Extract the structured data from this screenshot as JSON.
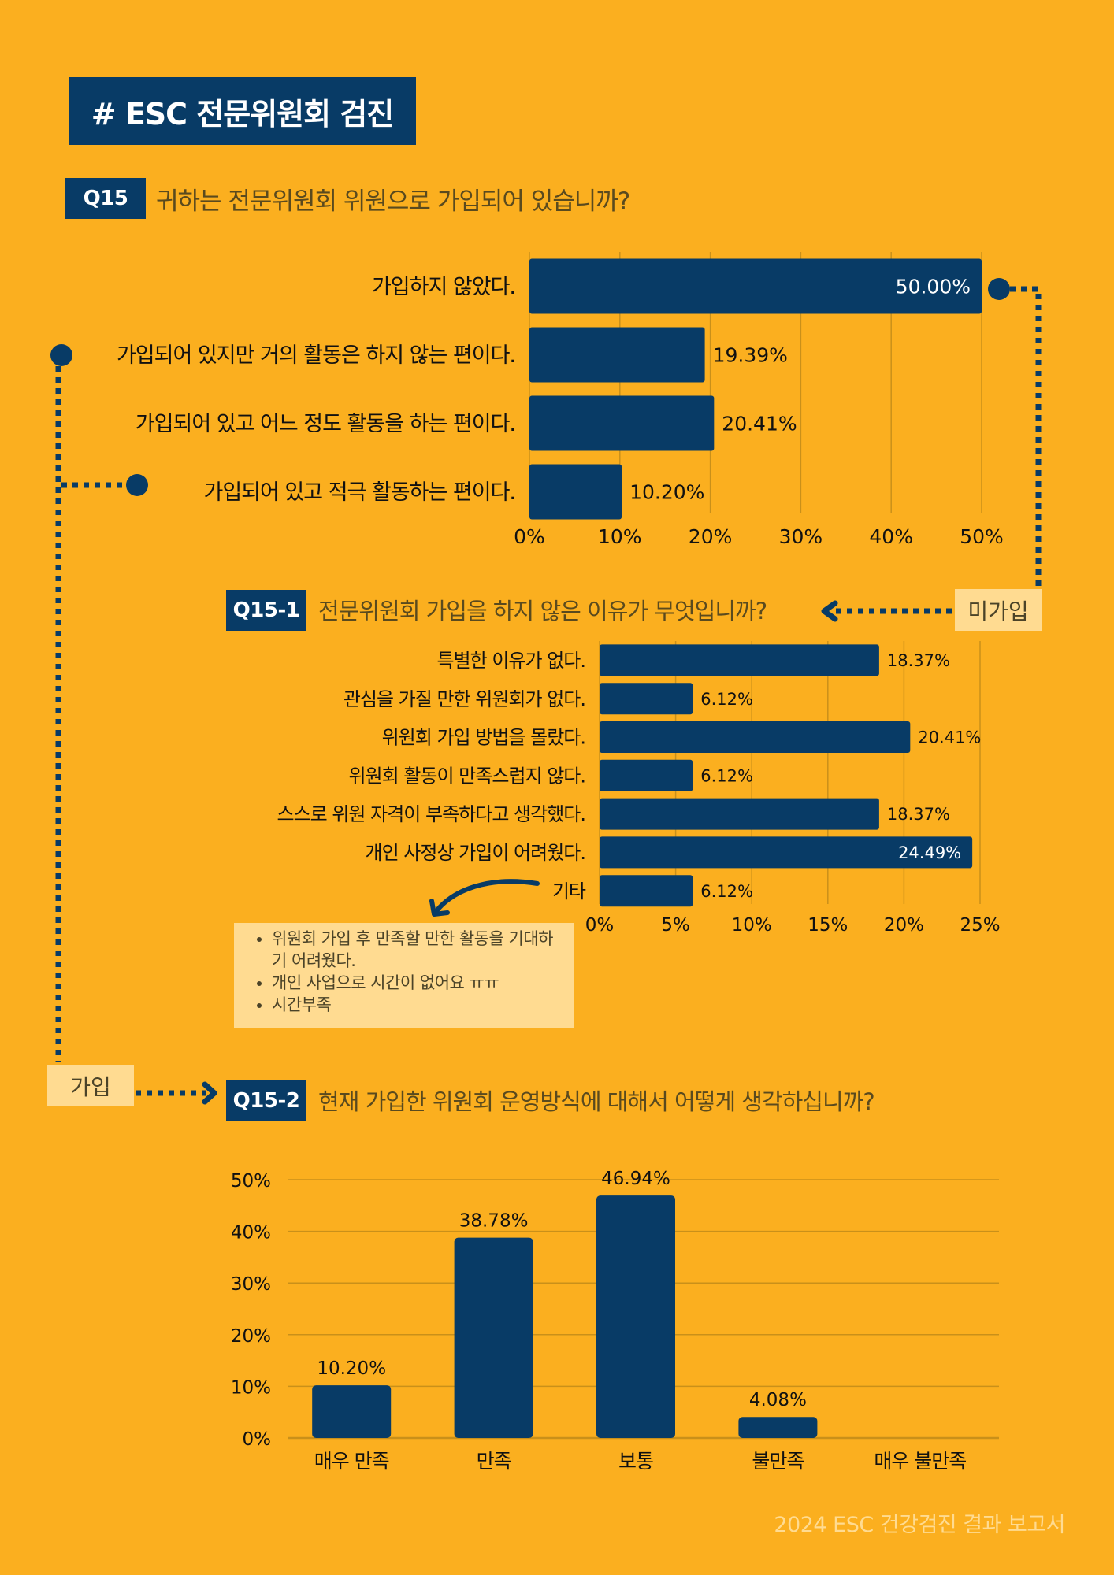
{
  "header": {
    "title": "# ESC 전문위원회 검진"
  },
  "colors": {
    "background": "#FBAF1F",
    "navy": "#083B66",
    "soft": "#FFDB91",
    "grid": "#C9901A"
  },
  "q15": {
    "tag": "Q15",
    "question": "귀하는 전문위원회 위원으로 가입되어 있습니까?"
  },
  "q15_1": {
    "tag": "Q15-1",
    "question": "전문위원회 가입을 하지 않은 이유가 무엇입니까?",
    "link_label": "미가입"
  },
  "q15_2": {
    "tag": "Q15-2",
    "question": "현재 가입한 위원회 운영방식에 대해서 어떻게 생각하십니까?",
    "link_label": "가입"
  },
  "other_notes": {
    "items": [
      "위원회 가입 후 만족할 만한 활동을 기대하기 어려웠다.",
      "개인 사업으로 시간이 없어요 ㅠㅠ",
      "시간부족"
    ]
  },
  "footer": {
    "text": "2024 ESC 건강검진 결과 보고서"
  },
  "chart_data": [
    {
      "type": "bar",
      "orientation": "horizontal",
      "title": "귀하는 전문위원회 위원으로 가입되어 있습니까?",
      "categories": [
        "가입하지 않았다.",
        "가입되어 있지만 거의 활동은 하지 않는 편이다.",
        "가입되어 있고 어느 정도 활동을 하는 편이다.",
        "가입되어 있고 적극 활동하는 편이다."
      ],
      "values": [
        50.0,
        19.39,
        20.41,
        10.2
      ],
      "labels": [
        "50.00%",
        "19.39%",
        "20.41%",
        "10.20%"
      ],
      "xlim": [
        0,
        50
      ],
      "ticks": [
        "0%",
        "10%",
        "20%",
        "30%",
        "40%",
        "50%"
      ],
      "tick_values": [
        0,
        10,
        20,
        30,
        40,
        50
      ],
      "grid": true
    },
    {
      "type": "bar",
      "orientation": "horizontal",
      "title": "전문위원회 가입을 하지 않은 이유가 무엇입니까?",
      "categories": [
        "특별한 이유가 없다.",
        "관심을 가질 만한 위원회가 없다.",
        "위원회 가입 방법을 몰랐다.",
        "위원회 활동이 만족스럽지 않다.",
        "스스로 위원 자격이 부족하다고 생각했다.",
        "개인 사정상 가입이 어려웠다.",
        "기타"
      ],
      "values": [
        18.37,
        6.12,
        20.41,
        6.12,
        18.37,
        24.49,
        6.12
      ],
      "labels": [
        "18.37%",
        "6.12%",
        "20.41%",
        "6.12%",
        "18.37%",
        "24.49%",
        "6.12%"
      ],
      "xlim": [
        0,
        25
      ],
      "ticks": [
        "0%",
        "5%",
        "10%",
        "15%",
        "20%",
        "25%"
      ],
      "tick_values": [
        0,
        5,
        10,
        15,
        20,
        25
      ],
      "grid": true
    },
    {
      "type": "bar",
      "orientation": "vertical",
      "title": "현재 가입한 위원회 운영방식에 대해서 어떻게 생각하십니까?",
      "categories": [
        "매우 만족",
        "만족",
        "보통",
        "불만족",
        "매우 불만족"
      ],
      "values": [
        10.2,
        38.78,
        46.94,
        4.08,
        0
      ],
      "labels": [
        "10.20%",
        "38.78%",
        "46.94%",
        "4.08%",
        ""
      ],
      "ylim": [
        0,
        50
      ],
      "ticks": [
        "0%",
        "10%",
        "20%",
        "30%",
        "40%",
        "50%"
      ],
      "tick_values": [
        0,
        10,
        20,
        30,
        40,
        50
      ],
      "grid": true
    }
  ]
}
